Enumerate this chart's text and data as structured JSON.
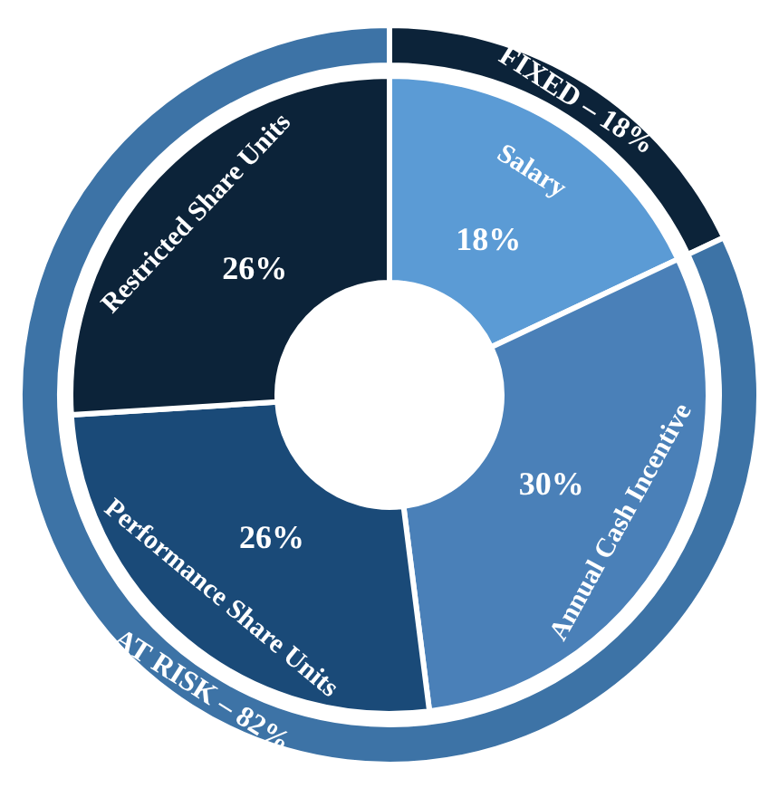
{
  "chart_data": [
    {
      "type": "donut",
      "categories": [
        "Salary",
        "Annual Cash Incentive",
        "Performance Share Units",
        "Restricted Share Units"
      ],
      "values": [
        18,
        30,
        26,
        26
      ],
      "colors": [
        "#5b9bd5",
        "#4a80b8",
        "#1a4a78",
        "#0c2339"
      ],
      "value_labels": [
        "18%",
        "30%",
        "26%",
        "26%"
      ]
    },
    {
      "type": "donut",
      "categories": [
        "FIXED – 18%",
        "AT RISK – 82%"
      ],
      "values": [
        18,
        82
      ],
      "colors": [
        "#0c2339",
        "#3d73a6"
      ]
    }
  ]
}
